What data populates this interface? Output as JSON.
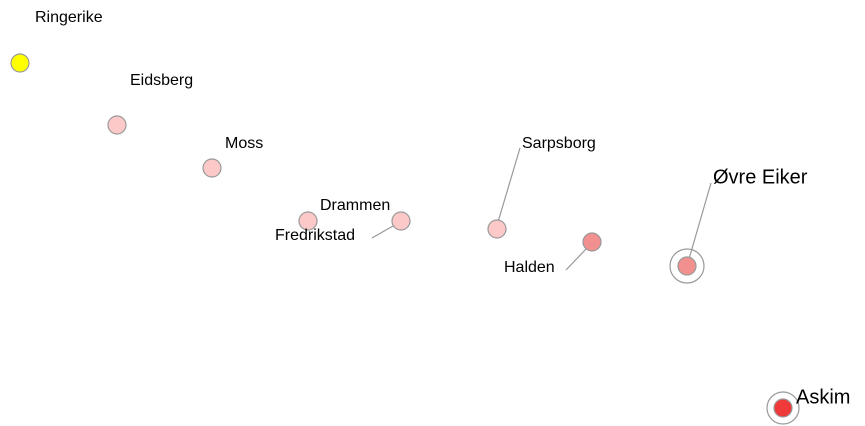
{
  "nodes": [
    {
      "label": "Ringerike",
      "color": "#ffff00"
    },
    {
      "label": "Eidsberg",
      "color": "#fcc8c8"
    },
    {
      "label": "Moss",
      "color": "#fcc8c8"
    },
    {
      "label": "Drammen",
      "color": "#fcc8c8"
    },
    {
      "label": "Fredrikstad",
      "color": "#fcc8c8"
    },
    {
      "label": "Sarpsborg",
      "color": "#fcc8c8"
    },
    {
      "label": "Halden",
      "color": "#f29090"
    },
    {
      "label": "Øvre Eiker",
      "color": "#f29090"
    },
    {
      "label": "Askim",
      "color": "#f03a3a"
    }
  ]
}
